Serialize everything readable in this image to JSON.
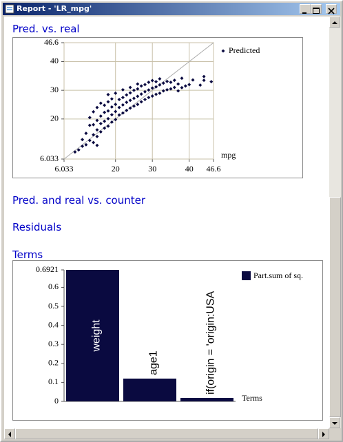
{
  "window": {
    "title": "Report - 'LR_mpg'"
  },
  "sections": [
    "Pred. vs. real",
    "Pred. and real vs. counter",
    "Residuals",
    "Terms"
  ],
  "chart_data": [
    {
      "type": "scatter",
      "x_label": "mpg",
      "x": [
        9,
        10,
        11,
        11,
        12,
        12,
        13,
        13,
        13,
        14,
        14,
        14,
        14,
        15,
        15,
        15,
        15,
        15,
        16,
        16,
        16,
        16,
        17,
        17,
        17,
        17,
        18,
        18,
        18,
        18,
        18,
        19,
        19,
        19,
        19,
        20,
        20,
        20,
        20,
        21,
        21,
        21,
        22,
        22,
        22,
        22,
        23,
        23,
        23,
        24,
        24,
        24,
        24,
        25,
        25,
        25,
        26,
        26,
        26,
        26,
        27,
        27,
        27,
        28,
        28,
        28,
        29,
        29,
        29,
        30,
        30,
        30,
        31,
        31,
        31,
        32,
        32,
        32,
        33,
        33,
        34,
        34,
        35,
        35,
        36,
        36,
        37,
        37,
        38,
        38,
        39,
        40,
        41,
        43,
        44,
        44,
        46
      ],
      "series": [
        {
          "name": "Predicted",
          "color": "#0a0a40",
          "values": [
            8.5,
            9.2,
            10.5,
            12.8,
            11.0,
            15.0,
            12.5,
            17.8,
            20.5,
            11.8,
            14.5,
            18.0,
            22.5,
            10.8,
            13.9,
            16.2,
            19.5,
            24.0,
            15.5,
            18.4,
            21.0,
            25.5,
            16.8,
            19.2,
            22.3,
            24.8,
            17.5,
            20.1,
            22.8,
            26.0,
            28.5,
            18.9,
            21.5,
            24.2,
            27.0,
            19.8,
            22.6,
            25.1,
            29.0,
            21.4,
            24.0,
            26.8,
            22.1,
            24.9,
            27.5,
            30.2,
            23.0,
            25.8,
            28.4,
            23.8,
            26.5,
            29.1,
            31.0,
            24.5,
            27.2,
            30.0,
            25.1,
            27.9,
            30.5,
            32.2,
            26.0,
            28.7,
            31.5,
            26.8,
            29.5,
            32.0,
            27.5,
            30.1,
            32.8,
            28.0,
            30.8,
            33.4,
            28.6,
            31.2,
            33.0,
            29.0,
            31.9,
            34.0,
            29.8,
            32.5,
            30.2,
            33.1,
            30.5,
            32.8,
            31.0,
            33.5,
            29.8,
            32.2,
            30.9,
            34.2,
            31.5,
            32.0,
            33.6,
            31.8,
            34.8,
            33.5,
            33.0
          ]
        }
      ],
      "xlim": [
        6.033,
        46.6
      ],
      "ylim": [
        6.033,
        46.6
      ],
      "xticks": [
        6.033,
        20,
        30,
        40,
        46.6
      ],
      "yticks": [
        6.033,
        20,
        30,
        40,
        46.6
      ],
      "grid": true,
      "identity_line": true
    },
    {
      "type": "bar",
      "x_label": "Terms",
      "categories": [
        "weight",
        "age1",
        "if(origin = 'origin:USA"
      ],
      "series": [
        {
          "name": "Part.sum of sq.",
          "color": "#0a0a40",
          "values": [
            0.6921,
            0.12,
            0.018
          ]
        }
      ],
      "ylim": [
        0,
        0.6921
      ],
      "yticks": [
        0,
        0.1,
        0.2,
        0.3,
        0.4,
        0.5,
        0.6,
        0.6921
      ],
      "grid": false
    }
  ]
}
